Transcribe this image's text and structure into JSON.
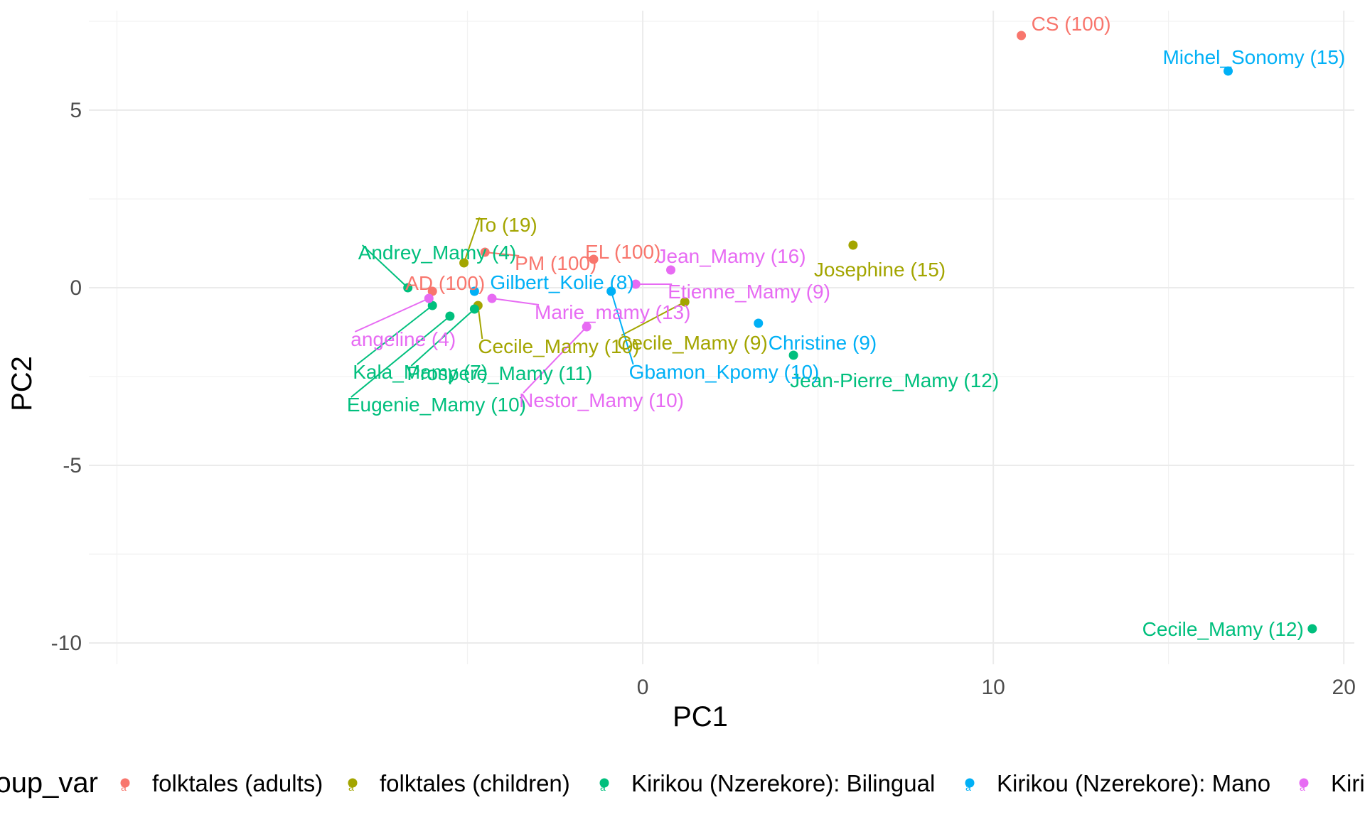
{
  "chart_data": {
    "type": "scatter",
    "title": "",
    "xlabel": "PC1",
    "ylabel": "PC2",
    "xlim": [
      -15.8,
      20.3
    ],
    "ylim": [
      -10.6,
      7.8
    ],
    "x_ticks": [
      0,
      10,
      20
    ],
    "y_ticks": [
      5,
      0,
      -5,
      -10
    ],
    "x_tick_labels": [
      "0",
      "10",
      "20"
    ],
    "y_tick_labels": [
      "5",
      "0",
      "-5",
      "-10"
    ],
    "grid": true,
    "legend": {
      "position": "bottom",
      "title": "group_var",
      "entries": [
        "folktales (adults)",
        "folktales (children)",
        "Kirikou (Nzerekore): Bilingual",
        "Kirikou (Nzerekore): Mano",
        "Kirikou (Nzerekore): Kpelle"
      ]
    },
    "series": [
      {
        "name": "folktales (adults)",
        "color": "#F8766D",
        "points": [
          {
            "label": "CS (100)",
            "x": 10.8,
            "y": 7.1
          },
          {
            "label": "PM (100)",
            "x": -4.5,
            "y": 1.0
          },
          {
            "label": "EL (100)",
            "x": -1.4,
            "y": 0.8
          },
          {
            "label": "AD (100)",
            "x": -6.0,
            "y": -0.1
          }
        ]
      },
      {
        "name": "folktales (children)",
        "color": "#A3A500",
        "points": [
          {
            "label": "To (19)",
            "x": -5.1,
            "y": 0.7
          },
          {
            "label": "Josephine (15)",
            "x": 6.0,
            "y": 1.2
          },
          {
            "label": "Cecile_Mamy (9)",
            "x": 1.2,
            "y": -0.4
          },
          {
            "label": "Cecile_Mamy (10)",
            "x": -4.7,
            "y": -0.5
          }
        ]
      },
      {
        "name": "Kirikou (Nzerekore): Bilingual",
        "color": "#00BF7D",
        "points": [
          {
            "label": "Andrey_Mamy (4)",
            "x": -6.7,
            "y": 0.0
          },
          {
            "label": "Kala_Mamy (7)",
            "x": -6.0,
            "y": -0.5
          },
          {
            "label": "Prospere_Mamy (11)",
            "x": -4.8,
            "y": -0.6
          },
          {
            "label": "Eugenie_Mamy (10)",
            "x": -5.5,
            "y": -0.8
          },
          {
            "label": "Jean-Pierre_Mamy (12)",
            "x": 4.3,
            "y": -1.9
          },
          {
            "label": "Cecile_Mamy (12)",
            "x": 19.1,
            "y": -9.6
          }
        ]
      },
      {
        "name": "Kirikou (Nzerekore): Mano",
        "color": "#00B0F6",
        "points": [
          {
            "label": "Michel_Sonomy (15)",
            "x": 16.7,
            "y": 6.1
          },
          {
            "label": "Gilbert_Kolie (8)",
            "x": -4.8,
            "y": -0.1
          },
          {
            "label": "Gbamon_Kpomy (10)",
            "x": -0.9,
            "y": -0.1
          },
          {
            "label": "Christine (9)",
            "x": 3.3,
            "y": -1.0
          }
        ]
      },
      {
        "name": "Kirikou (Nzerekore): Kpelle",
        "color": "#E76BF3",
        "points": [
          {
            "label": "Jean_Mamy (16)",
            "x": 0.8,
            "y": 0.5
          },
          {
            "label": "Etienne_Mamy (9)",
            "x": -0.2,
            "y": 0.1
          },
          {
            "label": "Marie_mamy (13)",
            "x": -4.3,
            "y": -0.3
          },
          {
            "label": "angeline (4)",
            "x": -6.1,
            "y": -0.3
          },
          {
            "label": "Nestor_Mamy (10)",
            "x": -1.6,
            "y": -1.1
          }
        ]
      }
    ]
  }
}
